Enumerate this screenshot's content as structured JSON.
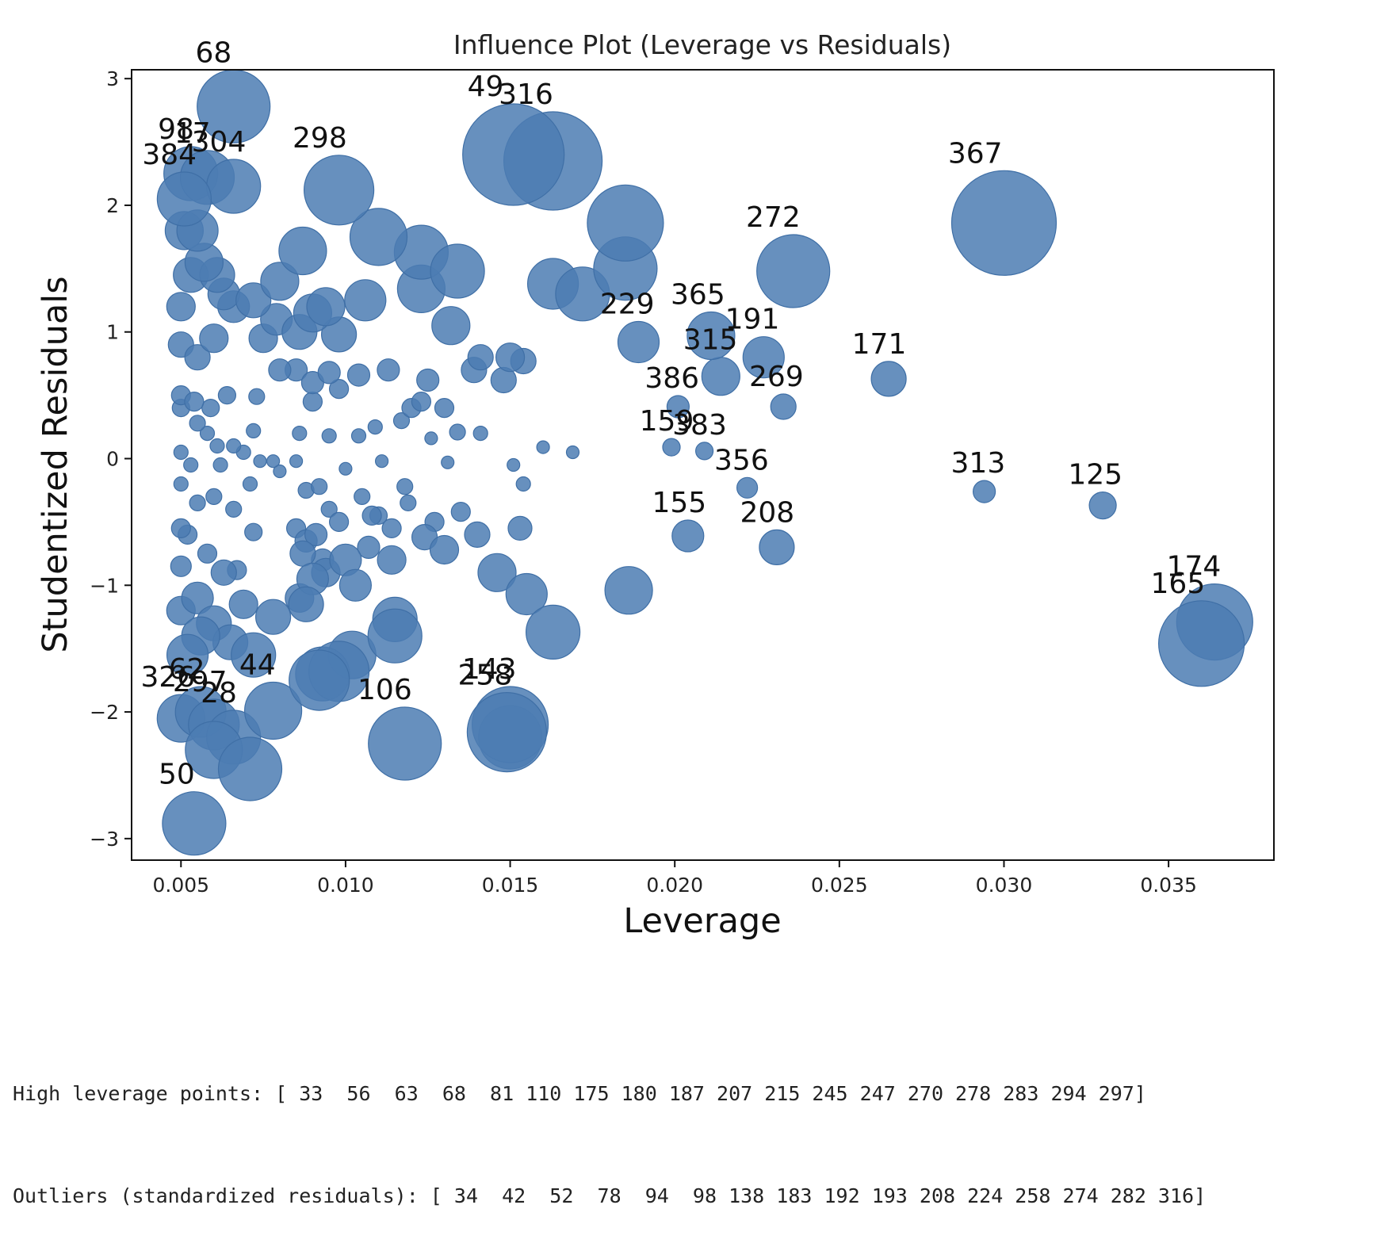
{
  "chart_data": {
    "type": "scatter",
    "title": "Influence Plot (Leverage vs Residuals)",
    "xlabel": "Leverage",
    "ylabel": "Studentized Residuals",
    "xlim": [
      0.0035,
      0.0382
    ],
    "ylim": [
      -3.17,
      3.07
    ],
    "xticks": [
      0.005,
      0.01,
      0.015,
      0.02,
      0.025,
      0.03,
      0.035
    ],
    "xtick_labels": [
      "0.005",
      "0.010",
      "0.015",
      "0.020",
      "0.025",
      "0.030",
      "0.035"
    ],
    "yticks": [
      3,
      2,
      1,
      0,
      -1,
      -2,
      -3
    ],
    "ytick_labels": [
      "3",
      "2",
      "1",
      "0",
      "−1",
      "−2",
      "−3"
    ],
    "marker_color": "#4c7db3",
    "marker_edge": "#3f6fa6",
    "grid": false,
    "annotated_points": [
      {
        "label": "68",
        "x": 0.0066,
        "y": 2.78,
        "size": 46
      },
      {
        "label": "49",
        "x": 0.0151,
        "y": 2.4,
        "size": 64
      },
      {
        "label": "316",
        "x": 0.0163,
        "y": 2.35,
        "size": 62
      },
      {
        "label": "98",
        "x": 0.0053,
        "y": 2.25,
        "size": 34
      },
      {
        "label": "17",
        "x": 0.0058,
        "y": 2.22,
        "size": 34
      },
      {
        "label": "304",
        "x": 0.0066,
        "y": 2.15,
        "size": 34
      },
      {
        "label": "384",
        "x": 0.0051,
        "y": 2.05,
        "size": 34
      },
      {
        "label": "298",
        "x": 0.0098,
        "y": 2.12,
        "size": 44
      },
      {
        "label": "367",
        "x": 0.03,
        "y": 1.86,
        "size": 66
      },
      {
        "label": "272",
        "x": 0.0236,
        "y": 1.48,
        "size": 46
      },
      {
        "label": "229",
        "x": 0.0189,
        "y": 0.92,
        "size": 26
      },
      {
        "label": "365",
        "x": 0.0211,
        "y": 0.97,
        "size": 30
      },
      {
        "label": "191",
        "x": 0.0227,
        "y": 0.8,
        "size": 26
      },
      {
        "label": "315",
        "x": 0.0214,
        "y": 0.65,
        "size": 24
      },
      {
        "label": "171",
        "x": 0.0265,
        "y": 0.63,
        "size": 22
      },
      {
        "label": "386",
        "x": 0.0201,
        "y": 0.41,
        "size": 14
      },
      {
        "label": "269",
        "x": 0.0233,
        "y": 0.41,
        "size": 16
      },
      {
        "label": "159",
        "x": 0.0199,
        "y": 0.09,
        "size": 11
      },
      {
        "label": "383",
        "x": 0.0209,
        "y": 0.06,
        "size": 11
      },
      {
        "label": "356",
        "x": 0.0222,
        "y": -0.23,
        "size": 13
      },
      {
        "label": "313",
        "x": 0.0294,
        "y": -0.26,
        "size": 14
      },
      {
        "label": "125",
        "x": 0.033,
        "y": -0.37,
        "size": 17
      },
      {
        "label": "155",
        "x": 0.0204,
        "y": -0.61,
        "size": 20
      },
      {
        "label": "208",
        "x": 0.0231,
        "y": -0.7,
        "size": 22
      },
      {
        "label": "174",
        "x": 0.0364,
        "y": -1.29,
        "size": 48
      },
      {
        "label": "165",
        "x": 0.036,
        "y": -1.46,
        "size": 54
      },
      {
        "label": "143",
        "x": 0.015,
        "y": -2.1,
        "size": 48
      },
      {
        "label": "258",
        "x": 0.0149,
        "y": -2.16,
        "size": 50
      },
      {
        "label": "106",
        "x": 0.0118,
        "y": -2.25,
        "size": 46
      },
      {
        "label": "44",
        "x": 0.0078,
        "y": -1.99,
        "size": 36
      },
      {
        "label": "326",
        "x": 0.005,
        "y": -2.05,
        "size": 30
      },
      {
        "label": "62",
        "x": 0.0056,
        "y": -2.0,
        "size": 32
      },
      {
        "label": "297",
        "x": 0.006,
        "y": -2.1,
        "size": 32
      },
      {
        "label": "28",
        "x": 0.0066,
        "y": -2.2,
        "size": 34
      },
      {
        "label": "50",
        "x": 0.0054,
        "y": -2.88,
        "size": 40
      }
    ],
    "other_points": [
      {
        "x": 0.0098,
        "y": -1.68,
        "size": 38
      },
      {
        "x": 0.0092,
        "y": -1.75,
        "size": 38
      },
      {
        "x": 0.0071,
        "y": -2.45,
        "size": 40
      },
      {
        "x": 0.0093,
        "y": -1.7,
        "size": 34
      },
      {
        "x": 0.006,
        "y": -2.3,
        "size": 36
      },
      {
        "x": 0.0102,
        "y": -1.55,
        "size": 30
      },
      {
        "x": 0.0115,
        "y": -1.4,
        "size": 34
      },
      {
        "x": 0.0115,
        "y": -1.27,
        "size": 28
      },
      {
        "x": 0.015,
        "y": -2.2,
        "size": 40
      },
      {
        "x": 0.0163,
        "y": -1.37,
        "size": 34
      },
      {
        "x": 0.0186,
        "y": -1.04,
        "size": 30
      },
      {
        "x": 0.0146,
        "y": -0.9,
        "size": 24
      },
      {
        "x": 0.0155,
        "y": -1.07,
        "size": 26
      },
      {
        "x": 0.0052,
        "y": -1.55,
        "size": 26
      },
      {
        "x": 0.0056,
        "y": -1.4,
        "size": 24
      },
      {
        "x": 0.006,
        "y": -1.3,
        "size": 22
      },
      {
        "x": 0.0065,
        "y": -1.45,
        "size": 22
      },
      {
        "x": 0.0072,
        "y": -1.55,
        "size": 28
      },
      {
        "x": 0.0078,
        "y": -1.25,
        "size": 22
      },
      {
        "x": 0.0055,
        "y": -1.1,
        "size": 20
      },
      {
        "x": 0.005,
        "y": -1.2,
        "size": 18
      },
      {
        "x": 0.0063,
        "y": -0.9,
        "size": 16
      },
      {
        "x": 0.0069,
        "y": -1.15,
        "size": 18
      },
      {
        "x": 0.0088,
        "y": -1.15,
        "size": 22
      },
      {
        "x": 0.009,
        "y": -0.95,
        "size": 20
      },
      {
        "x": 0.0086,
        "y": -1.1,
        "size": 18
      },
      {
        "x": 0.01,
        "y": -0.8,
        "size": 20
      },
      {
        "x": 0.0103,
        "y": -1.0,
        "size": 20
      },
      {
        "x": 0.0114,
        "y": -0.8,
        "size": 18
      },
      {
        "x": 0.0124,
        "y": -0.62,
        "size": 16
      },
      {
        "x": 0.013,
        "y": -0.72,
        "size": 18
      },
      {
        "x": 0.014,
        "y": -0.6,
        "size": 16
      },
      {
        "x": 0.0153,
        "y": -0.55,
        "size": 15
      },
      {
        "x": 0.0088,
        "y": -0.65,
        "size": 14
      },
      {
        "x": 0.0093,
        "y": -0.8,
        "size": 14
      },
      {
        "x": 0.0085,
        "y": -0.55,
        "size": 12
      },
      {
        "x": 0.005,
        "y": -0.85,
        "size": 13
      },
      {
        "x": 0.0052,
        "y": -0.6,
        "size": 12
      },
      {
        "x": 0.0058,
        "y": -0.75,
        "size": 12
      },
      {
        "x": 0.0067,
        "y": -0.88,
        "size": 12
      },
      {
        "x": 0.0072,
        "y": -0.58,
        "size": 11
      },
      {
        "x": 0.011,
        "y": -0.45,
        "size": 11
      },
      {
        "x": 0.0127,
        "y": -0.5,
        "size": 12
      },
      {
        "x": 0.0135,
        "y": -0.42,
        "size": 12
      },
      {
        "x": 0.0105,
        "y": -0.3,
        "size": 10
      },
      {
        "x": 0.0118,
        "y": -0.22,
        "size": 10
      },
      {
        "x": 0.0095,
        "y": -0.4,
        "size": 10
      },
      {
        "x": 0.0088,
        "y": -0.25,
        "size": 10
      },
      {
        "x": 0.006,
        "y": -0.3,
        "size": 10
      },
      {
        "x": 0.0066,
        "y": -0.4,
        "size": 10
      },
      {
        "x": 0.005,
        "y": -0.2,
        "size": 9
      },
      {
        "x": 0.0053,
        "y": -0.05,
        "size": 9
      },
      {
        "x": 0.0071,
        "y": -0.2,
        "size": 9
      },
      {
        "x": 0.008,
        "y": -0.1,
        "size": 8
      },
      {
        "x": 0.01,
        "y": -0.08,
        "size": 8
      },
      {
        "x": 0.0111,
        "y": -0.02,
        "size": 8
      },
      {
        "x": 0.0131,
        "y": -0.03,
        "size": 8
      },
      {
        "x": 0.0151,
        "y": -0.05,
        "size": 8
      },
      {
        "x": 0.0154,
        "y": -0.2,
        "size": 9
      },
      {
        "x": 0.016,
        "y": 0.09,
        "size": 8
      },
      {
        "x": 0.0169,
        "y": 0.05,
        "size": 8
      },
      {
        "x": 0.0141,
        "y": 0.2,
        "size": 9
      },
      {
        "x": 0.0126,
        "y": 0.16,
        "size": 8
      },
      {
        "x": 0.0109,
        "y": 0.25,
        "size": 9
      },
      {
        "x": 0.0095,
        "y": 0.18,
        "size": 9
      },
      {
        "x": 0.0086,
        "y": 0.2,
        "size": 9
      },
      {
        "x": 0.0072,
        "y": 0.22,
        "size": 9
      },
      {
        "x": 0.0061,
        "y": 0.1,
        "size": 9
      },
      {
        "x": 0.0055,
        "y": 0.28,
        "size": 10
      },
      {
        "x": 0.005,
        "y": 0.4,
        "size": 11
      },
      {
        "x": 0.0064,
        "y": 0.5,
        "size": 11
      },
      {
        "x": 0.0073,
        "y": 0.49,
        "size": 10
      },
      {
        "x": 0.009,
        "y": 0.45,
        "size": 12
      },
      {
        "x": 0.0098,
        "y": 0.55,
        "size": 12
      },
      {
        "x": 0.0104,
        "y": 0.66,
        "size": 14
      },
      {
        "x": 0.0113,
        "y": 0.7,
        "size": 14
      },
      {
        "x": 0.012,
        "y": 0.4,
        "size": 12
      },
      {
        "x": 0.0125,
        "y": 0.62,
        "size": 14
      },
      {
        "x": 0.013,
        "y": 0.4,
        "size": 12
      },
      {
        "x": 0.0134,
        "y": 0.21,
        "size": 10
      },
      {
        "x": 0.0139,
        "y": 0.7,
        "size": 16
      },
      {
        "x": 0.0148,
        "y": 0.62,
        "size": 16
      },
      {
        "x": 0.015,
        "y": 0.8,
        "size": 18
      },
      {
        "x": 0.0154,
        "y": 0.77,
        "size": 16
      },
      {
        "x": 0.0141,
        "y": 0.8,
        "size": 16
      },
      {
        "x": 0.0085,
        "y": 0.7,
        "size": 14
      },
      {
        "x": 0.008,
        "y": 0.7,
        "size": 14
      },
      {
        "x": 0.009,
        "y": 0.6,
        "size": 14
      },
      {
        "x": 0.0095,
        "y": 0.68,
        "size": 14
      },
      {
        "x": 0.005,
        "y": 0.9,
        "size": 16
      },
      {
        "x": 0.0055,
        "y": 0.8,
        "size": 16
      },
      {
        "x": 0.006,
        "y": 0.95,
        "size": 18
      },
      {
        "x": 0.0066,
        "y": 1.2,
        "size": 20
      },
      {
        "x": 0.0075,
        "y": 0.95,
        "size": 18
      },
      {
        "x": 0.0086,
        "y": 1.0,
        "size": 22
      },
      {
        "x": 0.009,
        "y": 1.15,
        "size": 24
      },
      {
        "x": 0.0094,
        "y": 1.2,
        "size": 24
      },
      {
        "x": 0.0098,
        "y": 0.98,
        "size": 22
      },
      {
        "x": 0.008,
        "y": 1.4,
        "size": 24
      },
      {
        "x": 0.0079,
        "y": 1.1,
        "size": 20
      },
      {
        "x": 0.0106,
        "y": 1.25,
        "size": 26
      },
      {
        "x": 0.0123,
        "y": 1.34,
        "size": 30
      },
      {
        "x": 0.0123,
        "y": 1.63,
        "size": 34
      },
      {
        "x": 0.0134,
        "y": 1.48,
        "size": 34
      },
      {
        "x": 0.0132,
        "y": 1.05,
        "size": 24
      },
      {
        "x": 0.011,
        "y": 1.75,
        "size": 36
      },
      {
        "x": 0.0087,
        "y": 1.64,
        "size": 30
      },
      {
        "x": 0.0163,
        "y": 1.38,
        "size": 32
      },
      {
        "x": 0.0172,
        "y": 1.3,
        "size": 34
      },
      {
        "x": 0.0185,
        "y": 1.5,
        "size": 40
      },
      {
        "x": 0.0185,
        "y": 1.86,
        "size": 48
      },
      {
        "x": 0.005,
        "y": 1.2,
        "size": 18
      },
      {
        "x": 0.0053,
        "y": 1.45,
        "size": 22
      },
      {
        "x": 0.0057,
        "y": 1.55,
        "size": 24
      },
      {
        "x": 0.0061,
        "y": 1.45,
        "size": 22
      },
      {
        "x": 0.0055,
        "y": 1.8,
        "size": 26
      },
      {
        "x": 0.0051,
        "y": 1.8,
        "size": 24
      },
      {
        "x": 0.0063,
        "y": 1.3,
        "size": 20
      },
      {
        "x": 0.0072,
        "y": 1.25,
        "size": 22
      },
      {
        "x": 0.005,
        "y": 0.5,
        "size": 12
      },
      {
        "x": 0.0054,
        "y": 0.45,
        "size": 12
      },
      {
        "x": 0.0059,
        "y": 0.4,
        "size": 11
      },
      {
        "x": 0.005,
        "y": 0.05,
        "size": 9
      },
      {
        "x": 0.0055,
        "y": -0.35,
        "size": 10
      },
      {
        "x": 0.0085,
        "y": -0.02,
        "size": 8
      },
      {
        "x": 0.0092,
        "y": -0.22,
        "size": 10
      },
      {
        "x": 0.005,
        "y": -0.55,
        "size": 12
      },
      {
        "x": 0.0078,
        "y": -0.02,
        "size": 8
      },
      {
        "x": 0.0104,
        "y": 0.18,
        "size": 9
      },
      {
        "x": 0.0117,
        "y": 0.3,
        "size": 10
      },
      {
        "x": 0.0123,
        "y": 0.45,
        "size": 12
      },
      {
        "x": 0.0114,
        "y": -0.55,
        "size": 12
      },
      {
        "x": 0.0107,
        "y": -0.7,
        "size": 14
      },
      {
        "x": 0.0098,
        "y": -0.5,
        "size": 12
      },
      {
        "x": 0.0094,
        "y": -0.9,
        "size": 18
      },
      {
        "x": 0.0091,
        "y": -0.6,
        "size": 14
      },
      {
        "x": 0.0087,
        "y": -0.75,
        "size": 16
      },
      {
        "x": 0.0108,
        "y": -0.45,
        "size": 12
      },
      {
        "x": 0.0119,
        "y": -0.35,
        "size": 10
      },
      {
        "x": 0.0062,
        "y": -0.05,
        "size": 9
      },
      {
        "x": 0.0069,
        "y": 0.05,
        "size": 9
      },
      {
        "x": 0.0074,
        "y": -0.02,
        "size": 8
      },
      {
        "x": 0.0058,
        "y": 0.2,
        "size": 9
      },
      {
        "x": 0.0066,
        "y": 0.1,
        "size": 9
      }
    ]
  },
  "console": {
    "line1": "High leverage points: [ 33  56  63  68  81 110 175 180 187 207 215 245 247 270 278 283 294 297]",
    "line2": "Outliers (standardized residuals): [ 34  42  52  78  94  98 138 183 192 193 208 224 258 274 282 316]"
  }
}
